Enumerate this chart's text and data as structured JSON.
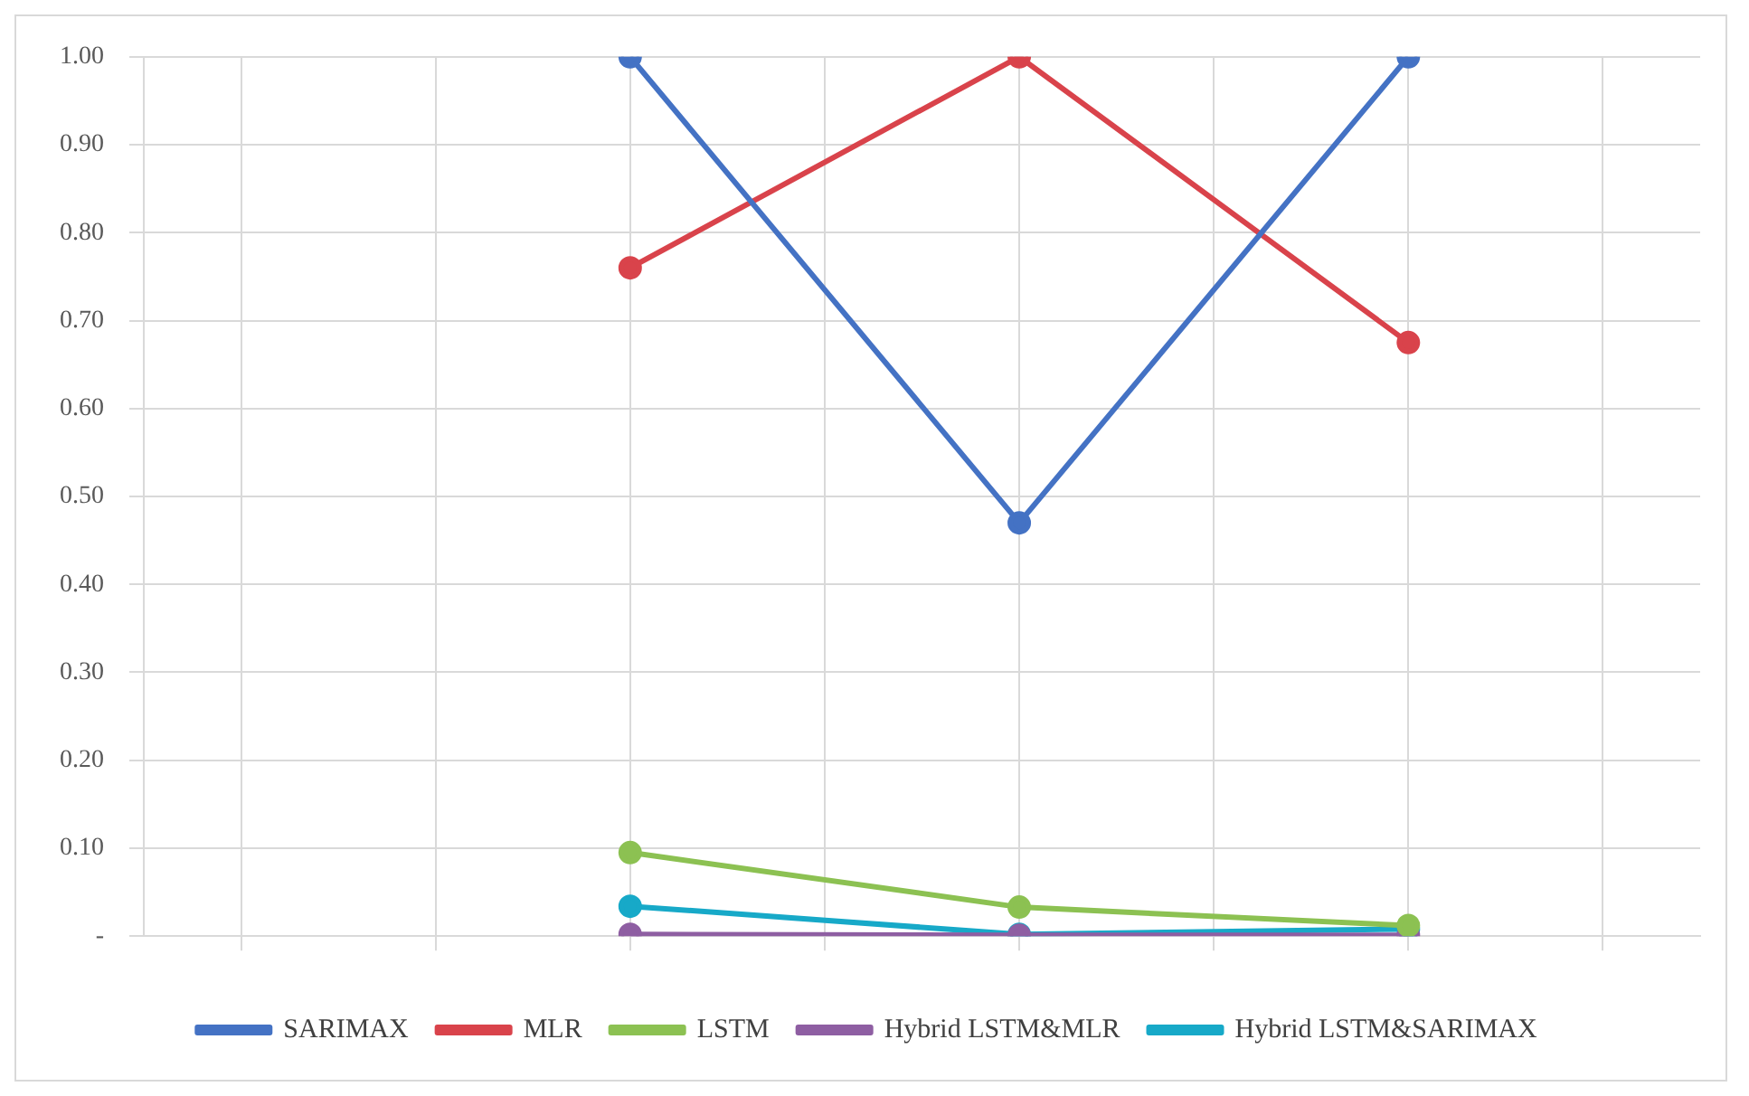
{
  "chart_data": {
    "type": "line",
    "categories": [
      null,
      null,
      null,
      null,
      null,
      null,
      null,
      null
    ],
    "series": [
      {
        "name": "SARIMAX",
        "color": "#4472c4",
        "values": [
          null,
          null,
          1.0,
          null,
          0.47,
          null,
          1.0,
          null
        ]
      },
      {
        "name": "MLR",
        "color": "#d9434b",
        "values": [
          null,
          null,
          0.76,
          null,
          1.0,
          null,
          0.675,
          null
        ]
      },
      {
        "name": "LSTM",
        "color": "#8cc152",
        "values": [
          null,
          null,
          0.095,
          null,
          0.033,
          null,
          0.012,
          null
        ]
      },
      {
        "name": "Hybrid LSTM&MLR",
        "color": "#8e5ea2",
        "values": [
          null,
          null,
          0.002,
          null,
          0.001,
          null,
          0.001,
          null
        ]
      },
      {
        "name": "Hybrid LSTM&SARIMAX",
        "color": "#17a9c8",
        "values": [
          null,
          null,
          0.034,
          null,
          0.002,
          null,
          0.008,
          null
        ]
      }
    ],
    "ylim": [
      0,
      1
    ],
    "yticks": [
      {
        "value": 0,
        "label": "-"
      },
      {
        "value": 0.1,
        "label": "0.10"
      },
      {
        "value": 0.2,
        "label": "0.20"
      },
      {
        "value": 0.3,
        "label": "0.30"
      },
      {
        "value": 0.4,
        "label": "0.40"
      },
      {
        "value": 0.5,
        "label": "0.50"
      },
      {
        "value": 0.6,
        "label": "0.60"
      },
      {
        "value": 0.7,
        "label": "0.70"
      },
      {
        "value": 0.8,
        "label": "0.80"
      },
      {
        "value": 0.9,
        "label": "0.90"
      },
      {
        "value": 1,
        "label": "1.00"
      }
    ],
    "grid": true,
    "legend": "bottom",
    "marker": "circle",
    "line_style": "solid"
  }
}
